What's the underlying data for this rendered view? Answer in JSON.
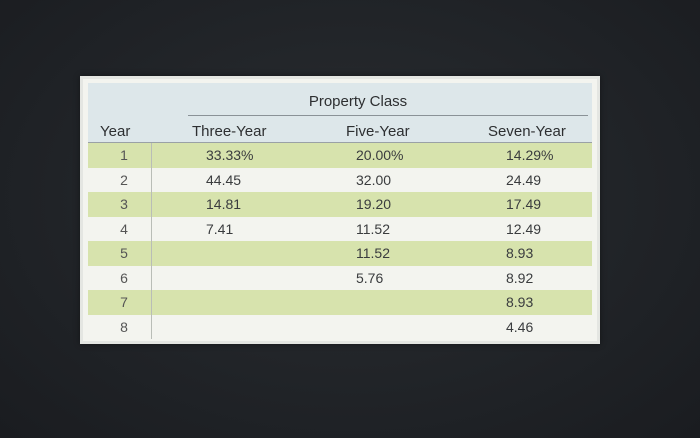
{
  "table": {
    "group_title": "Property Class",
    "headers": [
      "Year",
      "Three-Year",
      "Five-Year",
      "Seven-Year"
    ],
    "rows": [
      {
        "year": "1",
        "three": "33.33%",
        "five": "20.00%",
        "seven": "14.29%"
      },
      {
        "year": "2",
        "three": "44.45",
        "five": "32.00",
        "seven": "24.49"
      },
      {
        "year": "3",
        "three": "14.81",
        "five": "19.20",
        "seven": "17.49"
      },
      {
        "year": "4",
        "three": "7.41",
        "five": "11.52",
        "seven": "12.49"
      },
      {
        "year": "5",
        "three": "",
        "five": "11.52",
        "seven": "8.93"
      },
      {
        "year": "6",
        "three": "",
        "five": "5.76",
        "seven": "8.92"
      },
      {
        "year": "7",
        "three": "",
        "five": "",
        "seven": "8.93"
      },
      {
        "year": "8",
        "three": "",
        "five": "",
        "seven": "4.46"
      }
    ],
    "colors": {
      "shaded_row": "#d7e3ad",
      "plain_row": "#f3f4ef",
      "header_band": "#dde7ea",
      "background": "#202327"
    }
  }
}
